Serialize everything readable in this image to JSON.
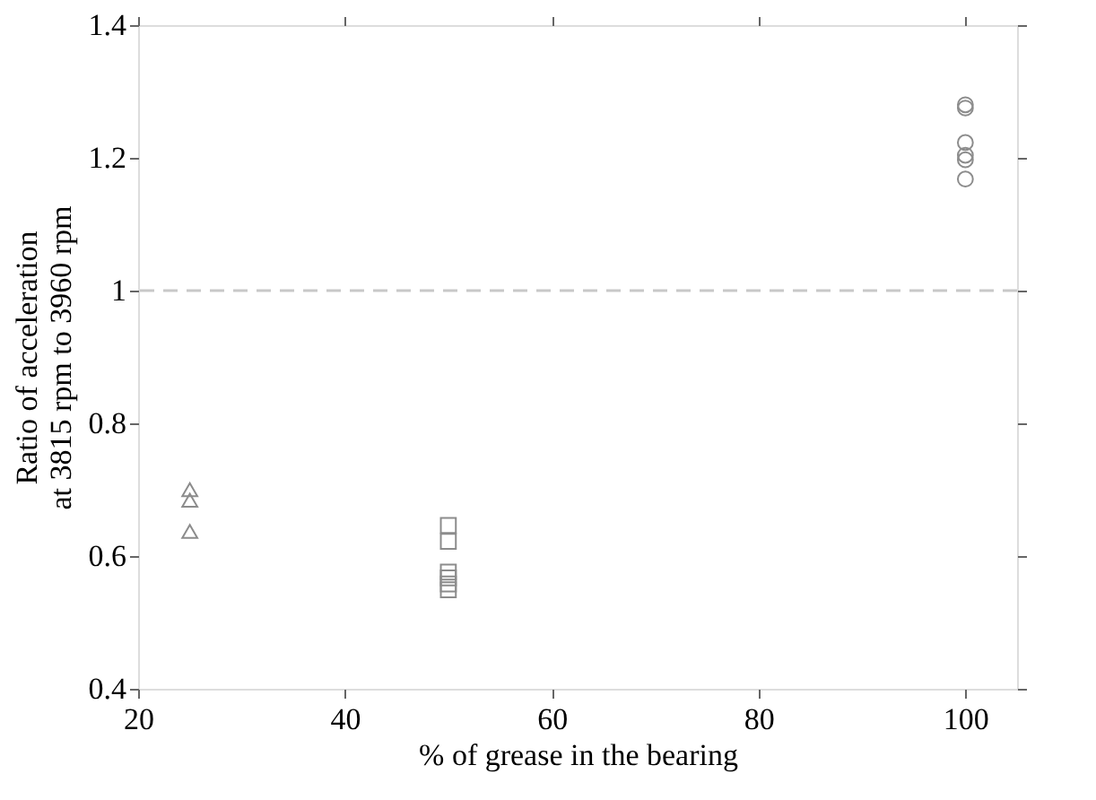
{
  "chart_data": {
    "type": "scatter",
    "xlabel": "% of grease in the bearing",
    "ylabel": "Ratio of acceleration\nat 3815 rpm to 3960 rpm",
    "xlim": [
      20,
      105
    ],
    "xticks": [
      20,
      40,
      60,
      80,
      100
    ],
    "ylim": [
      0.4,
      1.4
    ],
    "yticks": [
      0.4,
      0.6,
      0.8,
      1,
      1.2,
      1.4
    ],
    "grid": false,
    "legend": false,
    "series": [
      {
        "color": "#8c8c8c",
        "marker": "triangle",
        "x": [
          25,
          25,
          25
        ],
        "values": [
          0.7,
          0.684,
          0.637
        ]
      },
      {
        "color": "#8c8c8c",
        "marker": "square",
        "x": [
          50,
          50,
          50,
          50,
          50,
          50
        ],
        "values": [
          0.646,
          0.622,
          0.576,
          0.567,
          0.558,
          0.549
        ]
      },
      {
        "color": "#8c8c8c",
        "marker": "circle",
        "x": [
          100,
          100,
          100,
          100,
          100,
          100
        ],
        "values": [
          1.28,
          1.275,
          1.223,
          1.204,
          1.197,
          1.168
        ]
      }
    ],
    "ref_lines": [
      {
        "axis": "y",
        "value": 1,
        "color": "#c8c8c8",
        "line_style": "dashed"
      }
    ]
  }
}
